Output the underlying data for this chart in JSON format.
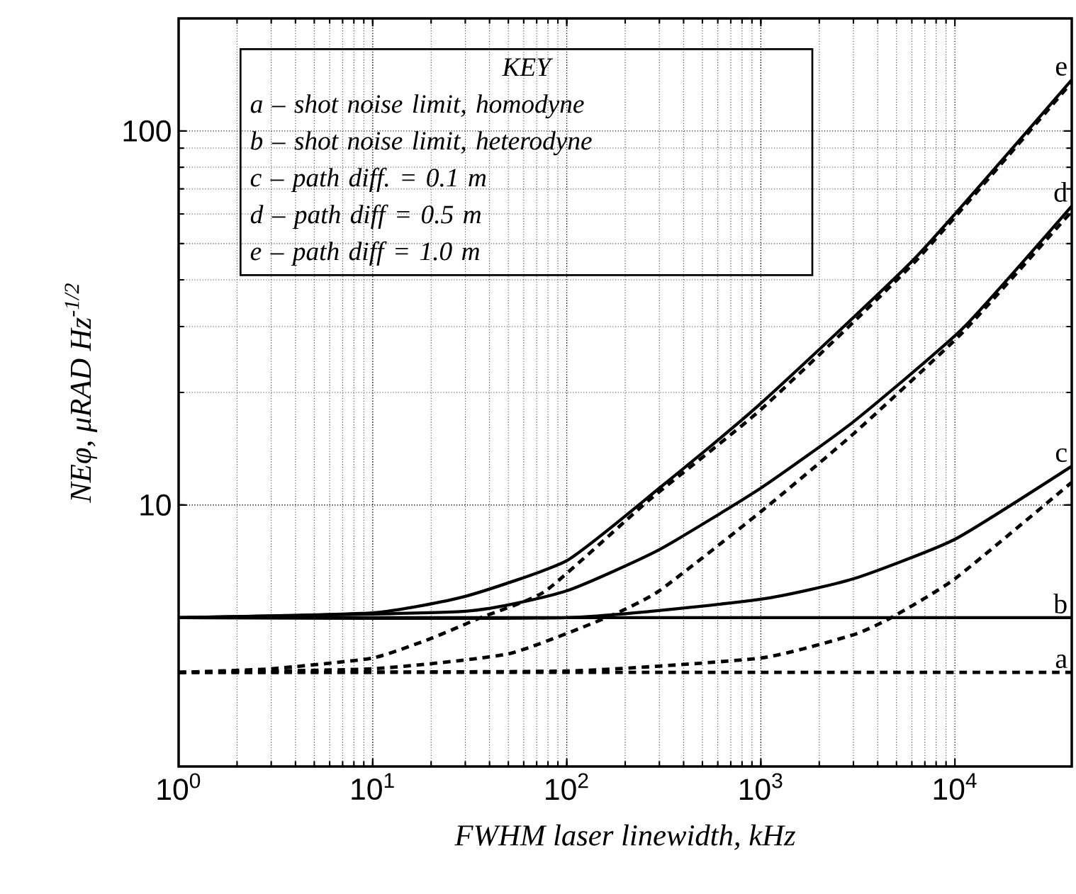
{
  "chart_data": {
    "type": "line",
    "xlabel": "FWHM laser linewidth, kHz",
    "ylabel": "NEφ, μRAD Hz$^{-1/2}$",
    "log": "xy",
    "grid": true,
    "marker": "none",
    "xlim": [
      1,
      40000
    ],
    "ylim": [
      2,
      200
    ],
    "xticks": [
      {
        "value": 1,
        "label": "10$^{0}$"
      },
      {
        "value": 10,
        "label": "10$^{1}$"
      },
      {
        "value": 100,
        "label": "10$^{2}$"
      },
      {
        "value": 1000,
        "label": "10$^{3}$"
      },
      {
        "value": 10000,
        "label": "10$^{4}$"
      }
    ],
    "yticks": [
      10,
      100
    ],
    "series": [
      {
        "name": "a",
        "color": "#000000",
        "line_style": "dashed",
        "x": [
          1,
          40000
        ],
        "values": [
          3.57,
          3.57
        ]
      },
      {
        "name": "b",
        "color": "#000000",
        "line_style": "solid",
        "x": [
          1,
          40000
        ],
        "values": [
          5.0,
          5.0
        ]
      },
      {
        "name": "c",
        "color": "#000000",
        "line_style": "solid",
        "x": [
          1,
          100,
          1000,
          3000,
          10000,
          40000
        ],
        "values": [
          5.0,
          5.0,
          5.6,
          6.35,
          8.1,
          12.7
        ]
      },
      {
        "color": "#000000",
        "line_style": "dashed",
        "x": [
          1,
          100,
          1000,
          3000,
          4700,
          10000,
          40000
        ],
        "values": [
          3.57,
          3.6,
          3.9,
          4.5,
          5.0,
          6.35,
          11.5
        ]
      },
      {
        "name": "d",
        "color": "#000000",
        "line_style": "solid",
        "x": [
          1,
          30,
          100,
          300,
          1000,
          3000,
          11000,
          40000
        ],
        "values": [
          5.0,
          5.2,
          5.9,
          7.6,
          11.1,
          16.7,
          29.7,
          63
        ]
      },
      {
        "color": "#000000",
        "line_style": "dashed",
        "x": [
          1,
          10,
          50,
          160,
          300,
          1000,
          3000,
          11000,
          40000
        ],
        "values": [
          3.57,
          3.65,
          4.0,
          5.0,
          5.9,
          9.6,
          15.5,
          29,
          61
        ]
      },
      {
        "name": "e",
        "color": "#000000",
        "line_style": "solid",
        "x": [
          1,
          10,
          30,
          100,
          300,
          1000,
          6300,
          40000
        ],
        "values": [
          5.0,
          5.15,
          5.7,
          7.1,
          11.1,
          18.7,
          46,
          137
        ]
      },
      {
        "color": "#000000",
        "line_style": "dashed",
        "x": [
          1,
          3,
          10,
          20,
          36,
          78,
          265,
          1000,
          6300,
          40000
        ],
        "values": [
          3.57,
          3.65,
          3.9,
          4.4,
          5.0,
          5.9,
          10.3,
          18,
          45,
          135
        ]
      }
    ],
    "annotations": [
      "KEY",
      "a – shot noise limit, homodyne",
      "b – shot noise limit, heterodyne",
      "c – path diff. = 0.1 m",
      "d – path diff = 0.5 m",
      "e – path diff = 1.0 m"
    ]
  }
}
